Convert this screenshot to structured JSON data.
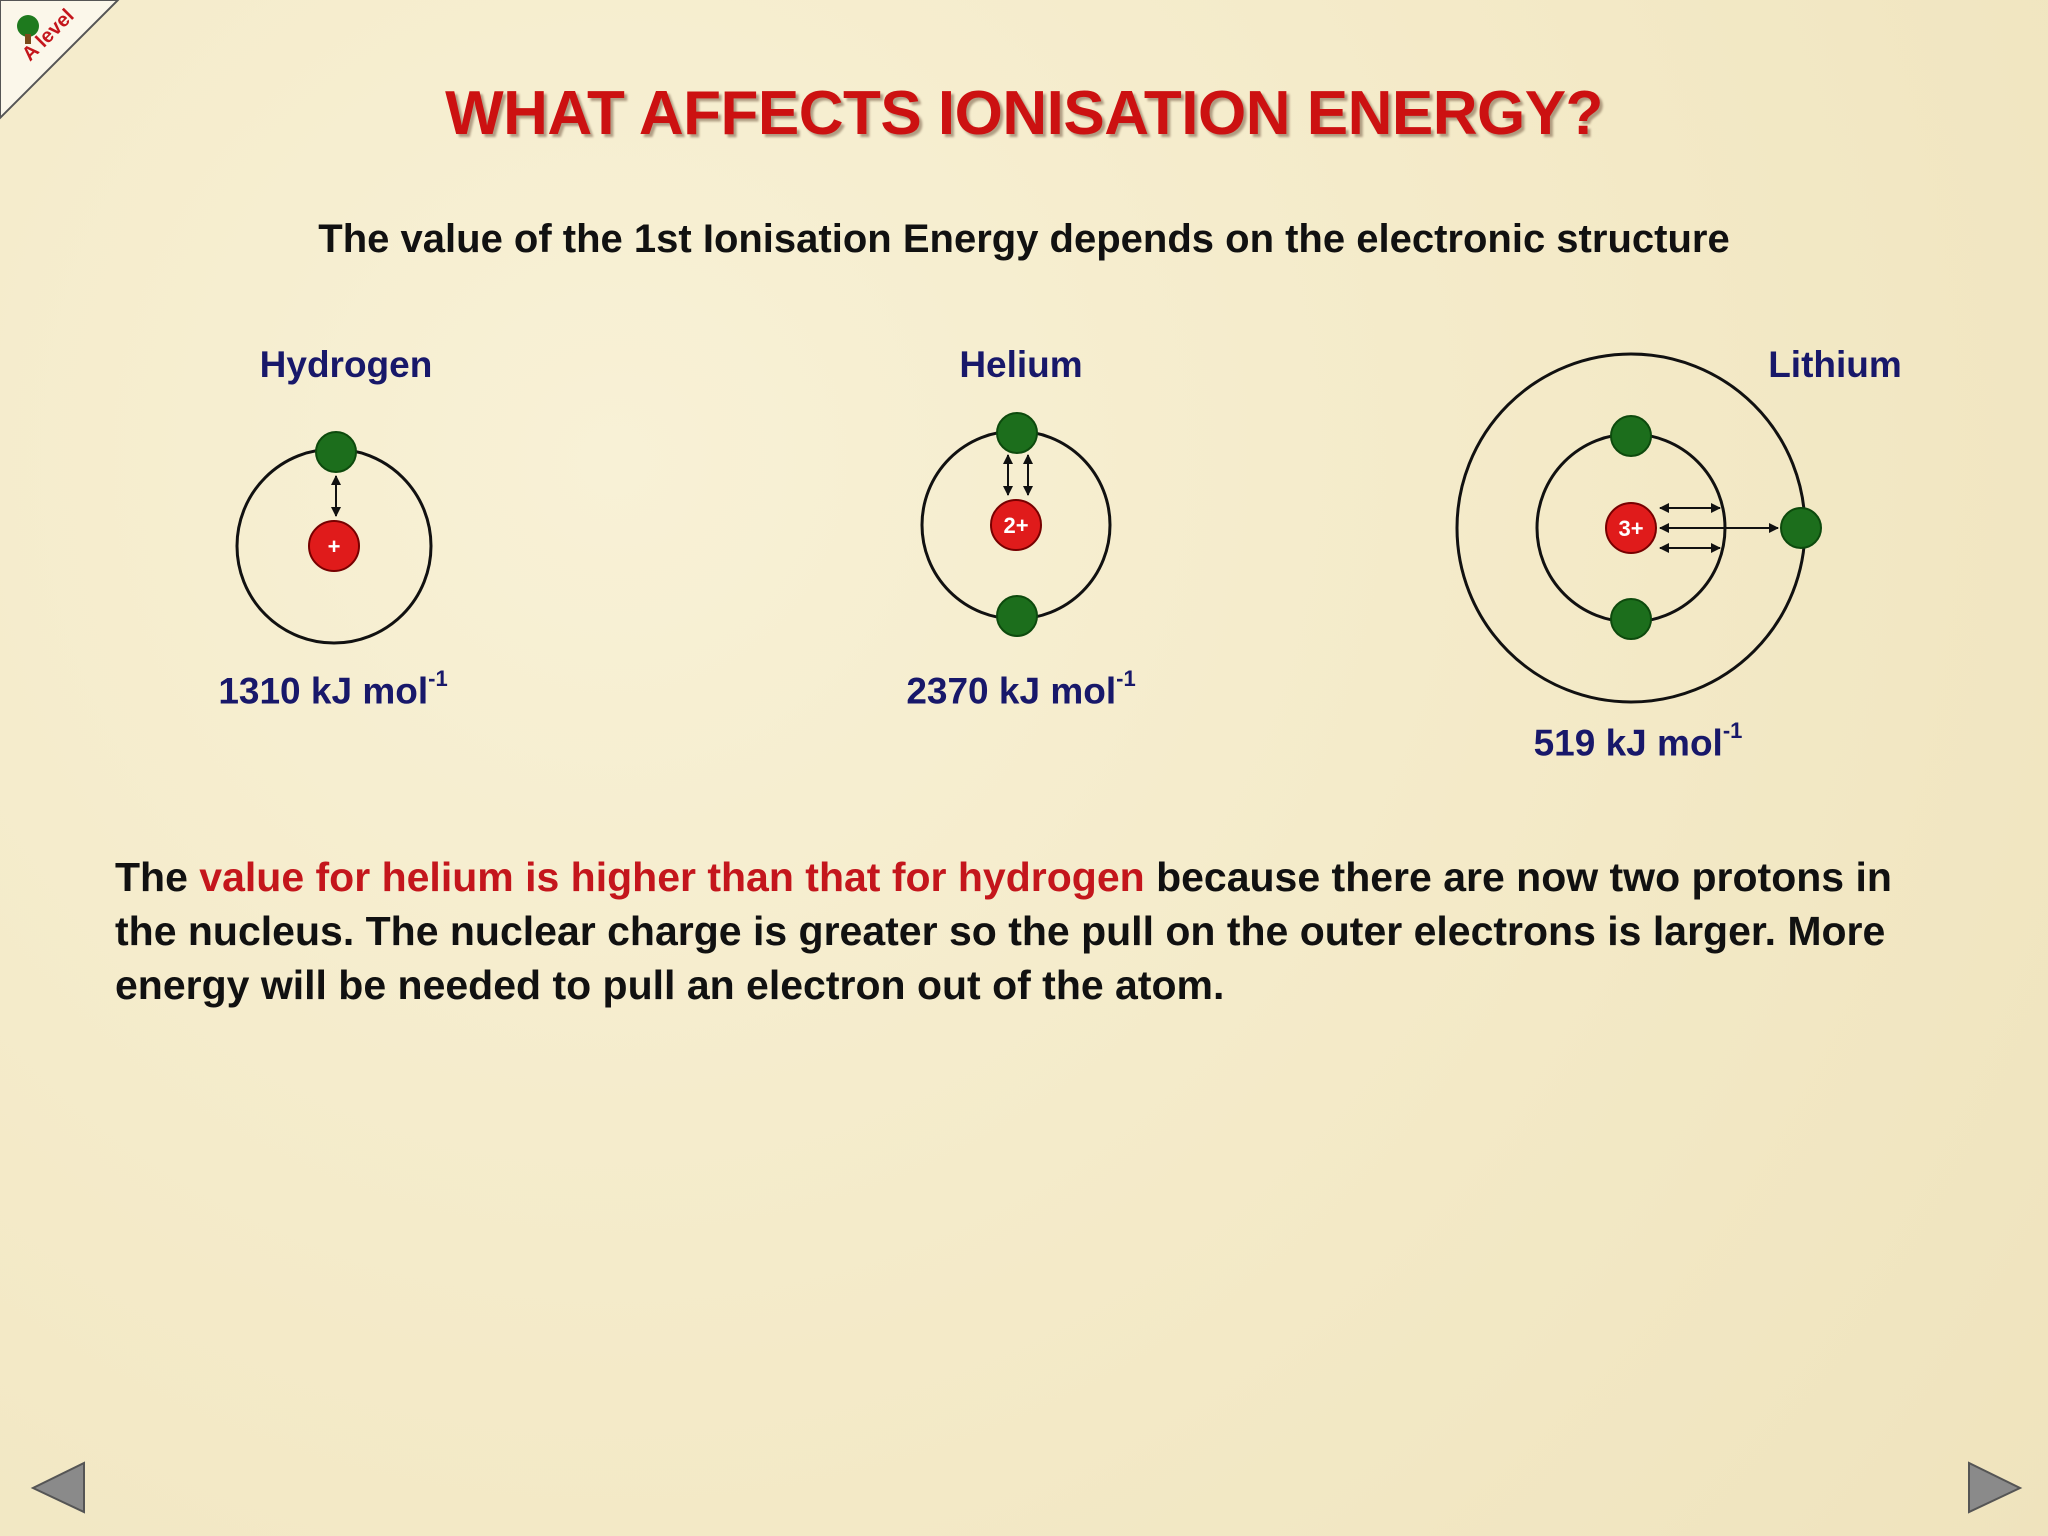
{
  "badge": {
    "label": "A level"
  },
  "title": "WHAT AFFECTS IONISATION ENERGY?",
  "subtitle": "The value of the 1st Ionisation Energy depends on the electronic structure",
  "atoms": [
    {
      "name": "Hydrogen",
      "charge": "+",
      "energy": "1310 kJ mol",
      "exponent": "-1"
    },
    {
      "name": "Helium",
      "charge": "2+",
      "energy": "2370 kJ mol",
      "exponent": "-1"
    },
    {
      "name": "Lithium",
      "charge": "3+",
      "energy": "519 kJ mol",
      "exponent": "-1"
    }
  ],
  "explanation": [
    "The ",
    "value for helium is higher than that for hydrogen",
    " because there are now two protons in the nucleus. The nuclear charge is greater so the pull on the outer electrons is larger. More energy will be needed to pull an electron out of the atom."
  ]
}
